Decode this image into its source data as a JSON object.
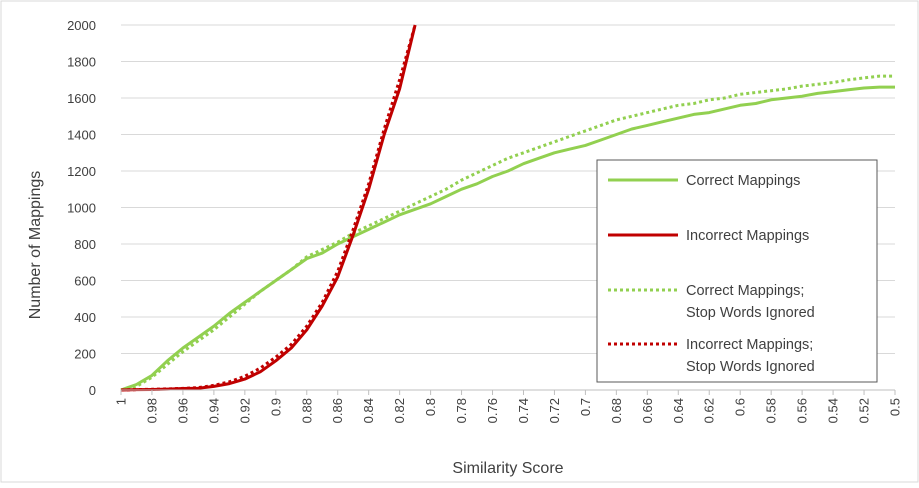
{
  "chart_data": {
    "type": "line",
    "xlabel": "Similarity Score",
    "ylabel": "Number of Mappings",
    "x_reversed": true,
    "xlim": [
      1,
      0.5
    ],
    "ylim": [
      0,
      2000
    ],
    "grid": "horizontal",
    "legend_position": "right",
    "x": [
      1,
      0.99,
      0.98,
      0.97,
      0.96,
      0.95,
      0.94,
      0.93,
      0.92,
      0.91,
      0.9,
      0.89,
      0.88,
      0.87,
      0.86,
      0.85,
      0.84,
      0.83,
      0.82,
      0.81,
      0.8,
      0.79,
      0.78,
      0.77,
      0.76,
      0.75,
      0.74,
      0.73,
      0.72,
      0.71,
      0.7,
      0.69,
      0.68,
      0.67,
      0.66,
      0.65,
      0.64,
      0.63,
      0.62,
      0.61,
      0.6,
      0.59,
      0.58,
      0.57,
      0.56,
      0.55,
      0.54,
      0.53,
      0.52,
      0.51,
      0.5
    ],
    "x_tick_labels": [
      "1",
      "0.98",
      "0.96",
      "0.94",
      "0.92",
      "0.9",
      "0.88",
      "0.86",
      "0.84",
      "0.82",
      "0.8",
      "0.78",
      "0.76",
      "0.74",
      "0.72",
      "0.7",
      "0.68",
      "0.66",
      "0.64",
      "0.62",
      "0.6",
      "0.58",
      "0.56",
      "0.54",
      "0.52",
      "0.5"
    ],
    "y_tick_labels": [
      "0",
      "200",
      "400",
      "600",
      "800",
      "1000",
      "1200",
      "1400",
      "1600",
      "1800",
      "2000"
    ],
    "series": [
      {
        "name": "Correct Mappings",
        "color": "#92D050",
        "style": "solid",
        "values": [
          0,
          30,
          80,
          160,
          230,
          290,
          350,
          420,
          480,
          540,
          600,
          660,
          720,
          750,
          800,
          840,
          880,
          920,
          960,
          990,
          1020,
          1060,
          1100,
          1130,
          1170,
          1200,
          1240,
          1270,
          1300,
          1320,
          1340,
          1370,
          1400,
          1430,
          1450,
          1470,
          1490,
          1510,
          1520,
          1540,
          1560,
          1570,
          1590,
          1600,
          1610,
          1625,
          1635,
          1645,
          1655,
          1660,
          1660
        ]
      },
      {
        "name": "Incorrect Mappings",
        "color": "#C00000",
        "style": "solid",
        "values": [
          0,
          2,
          3,
          5,
          8,
          10,
          20,
          35,
          60,
          100,
          160,
          230,
          330,
          460,
          620,
          850,
          1100,
          1400,
          1650,
          2000,
          null,
          null,
          null,
          null,
          null,
          null,
          null,
          null,
          null,
          null,
          null,
          null,
          null,
          null,
          null,
          null,
          null,
          null,
          null,
          null,
          null,
          null,
          null,
          null,
          null,
          null,
          null,
          null,
          null,
          null,
          null
        ]
      },
      {
        "name": "Correct Mappings; Stop Words Ignored",
        "color": "#92D050",
        "style": "dotted",
        "values": [
          0,
          20,
          70,
          140,
          210,
          270,
          330,
          400,
          470,
          540,
          600,
          660,
          730,
          770,
          810,
          860,
          900,
          940,
          980,
          1020,
          1060,
          1100,
          1150,
          1190,
          1230,
          1270,
          1300,
          1330,
          1360,
          1390,
          1420,
          1450,
          1480,
          1500,
          1520,
          1540,
          1560,
          1570,
          1590,
          1600,
          1620,
          1630,
          1640,
          1650,
          1665,
          1675,
          1685,
          1700,
          1710,
          1720,
          1720
        ]
      },
      {
        "name": "Incorrect Mappings; Stop Words Ignored",
        "color": "#C00000",
        "style": "dotted",
        "values": [
          0,
          2,
          4,
          6,
          9,
          13,
          25,
          45,
          75,
          120,
          180,
          250,
          350,
          480,
          650,
          880,
          1130,
          1430,
          1700,
          2000,
          null,
          null,
          null,
          null,
          null,
          null,
          null,
          null,
          null,
          null,
          null,
          null,
          null,
          null,
          null,
          null,
          null,
          null,
          null,
          null,
          null,
          null,
          null,
          null,
          null,
          null,
          null,
          null,
          null,
          null,
          null
        ]
      }
    ],
    "legend": [
      {
        "lines": [
          "Correct Mappings"
        ],
        "color": "#92D050",
        "style": "solid"
      },
      {
        "lines": [
          "Incorrect Mappings"
        ],
        "color": "#C00000",
        "style": "solid"
      },
      {
        "lines": [
          "Correct Mappings;",
          "Stop Words Ignored"
        ],
        "color": "#92D050",
        "style": "dotted"
      },
      {
        "lines": [
          "Incorrect Mappings;",
          "Stop Words Ignored"
        ],
        "color": "#C00000",
        "style": "dotted"
      }
    ]
  }
}
